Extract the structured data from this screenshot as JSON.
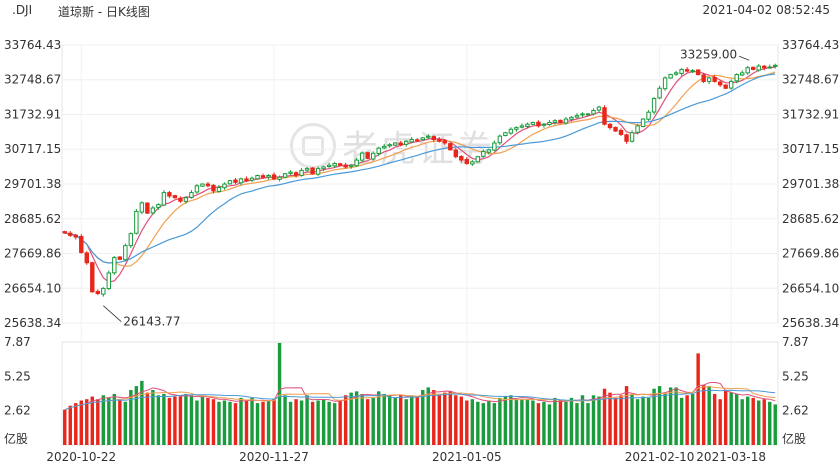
{
  "header": {
    "ticker": ".DJI",
    "title": "道琼斯 - 日K线图",
    "timestamp": "2021-04-02 08:52:45"
  },
  "watermark": "老虎证券",
  "colors": {
    "up": "#1a9b3c",
    "down": "#e8261b",
    "ma5": "#e0507a",
    "ma10": "#f0a050",
    "ma20": "#4a9ad8"
  },
  "chart_data": {
    "type": "candlestick",
    "price_axis": {
      "ticks": [
        "33764.43",
        "32748.67",
        "31732.91",
        "30717.15",
        "29701.38",
        "28685.62",
        "27669.86",
        "26654.10",
        "25638.34"
      ],
      "ylim": [
        25638.34,
        33764.43
      ]
    },
    "volume_axis": {
      "ticks": [
        "7.87",
        "5.25",
        "2.62"
      ],
      "unit": "亿股",
      "ylim": [
        0,
        7.87
      ]
    },
    "x_labels": [
      "2020-10-22",
      "2020-11-27",
      "2021-01-05",
      "2021-02-10",
      "2021-03-18"
    ],
    "annotations": {
      "low": "26143.77",
      "high": "33259.00"
    },
    "closes": [
      28270,
      28200,
      28150,
      27700,
      27400,
      26550,
      26500,
      26650,
      27100,
      27550,
      27500,
      27900,
      28250,
      28900,
      29150,
      28850,
      29000,
      29100,
      29450,
      29350,
      29300,
      29200,
      29300,
      29450,
      29650,
      29700,
      29650,
      29500,
      29600,
      29700,
      29800,
      29750,
      29850,
      29800,
      29870,
      29950,
      29900,
      29950,
      29850,
      29900,
      30000,
      30050,
      29960,
      30100,
      30150,
      30000,
      30150,
      30200,
      30250,
      30300,
      30250,
      30200,
      30250,
      30400,
      30606,
      30450,
      30600,
      30750,
      30800,
      30850,
      30900,
      30850,
      30950,
      31000,
      30990,
      31050,
      31100,
      31000,
      30950,
      30900,
      30700,
      30500,
      30400,
      30300,
      30350,
      30500,
      30650,
      30700,
      30900,
      31100,
      31200,
      31300,
      31350,
      31400,
      31450,
      31500,
      31400,
      31450,
      31500,
      31550,
      31500,
      31600,
      31650,
      31700,
      31750,
      31750,
      31850,
      31950,
      31450,
      31350,
      31250,
      31150,
      30950,
      31200,
      31400,
      31600,
      31800,
      32200,
      32500,
      32800,
      32900,
      32950,
      33050,
      33000,
      33015,
      32900,
      32700,
      32800,
      32700,
      32600,
      32500,
      32700,
      32900,
      32950,
      33100,
      33050,
      33150,
      33100,
      33120,
      33170
    ],
    "volumes": [
      2.7,
      3.0,
      3.2,
      3.4,
      3.5,
      3.7,
      3.5,
      3.8,
      3.6,
      3.9,
      3.4,
      3.3,
      4.2,
      4.5,
      4.9,
      4.0,
      4.2,
      3.8,
      3.9,
      3.6,
      3.7,
      3.7,
      3.9,
      3.8,
      3.4,
      3.7,
      3.6,
      3.5,
      3.3,
      3.4,
      3.3,
      3.2,
      3.6,
      3.4,
      3.6,
      3.2,
      3.3,
      3.4,
      3.5,
      7.8,
      3.8,
      3.3,
      3.5,
      3.4,
      3.8,
      3.3,
      3.4,
      3.5,
      3.3,
      3.2,
      3.4,
      3.8,
      4.0,
      4.1,
      3.9,
      3.5,
      3.6,
      4.1,
      3.9,
      3.8,
      3.6,
      3.8,
      3.5,
      3.8,
      3.7,
      4.2,
      4.4,
      4.2,
      3.8,
      4.0,
      4.1,
      3.8,
      3.7,
      3.4,
      3.5,
      3.3,
      3.2,
      3.4,
      3.2,
      3.6,
      3.7,
      3.8,
      3.5,
      3.5,
      3.5,
      3.4,
      3.2,
      3.3,
      3.1,
      3.6,
      3.4,
      3.3,
      3.6,
      3.2,
      3.8,
      3.2,
      3.8,
      3.7,
      4.3,
      4.0,
      3.6,
      3.8,
      4.5,
      3.9,
      3.5,
      3.7,
      3.6,
      4.3,
      4.5,
      3.9,
      4.4,
      4.4,
      3.6,
      3.8,
      3.9,
      7.0,
      4.6,
      4.5,
      3.9,
      3.5,
      4.2,
      4.0,
      3.9,
      3.5,
      3.7,
      3.6,
      3.4,
      3.5,
      3.3,
      3.1
    ]
  }
}
